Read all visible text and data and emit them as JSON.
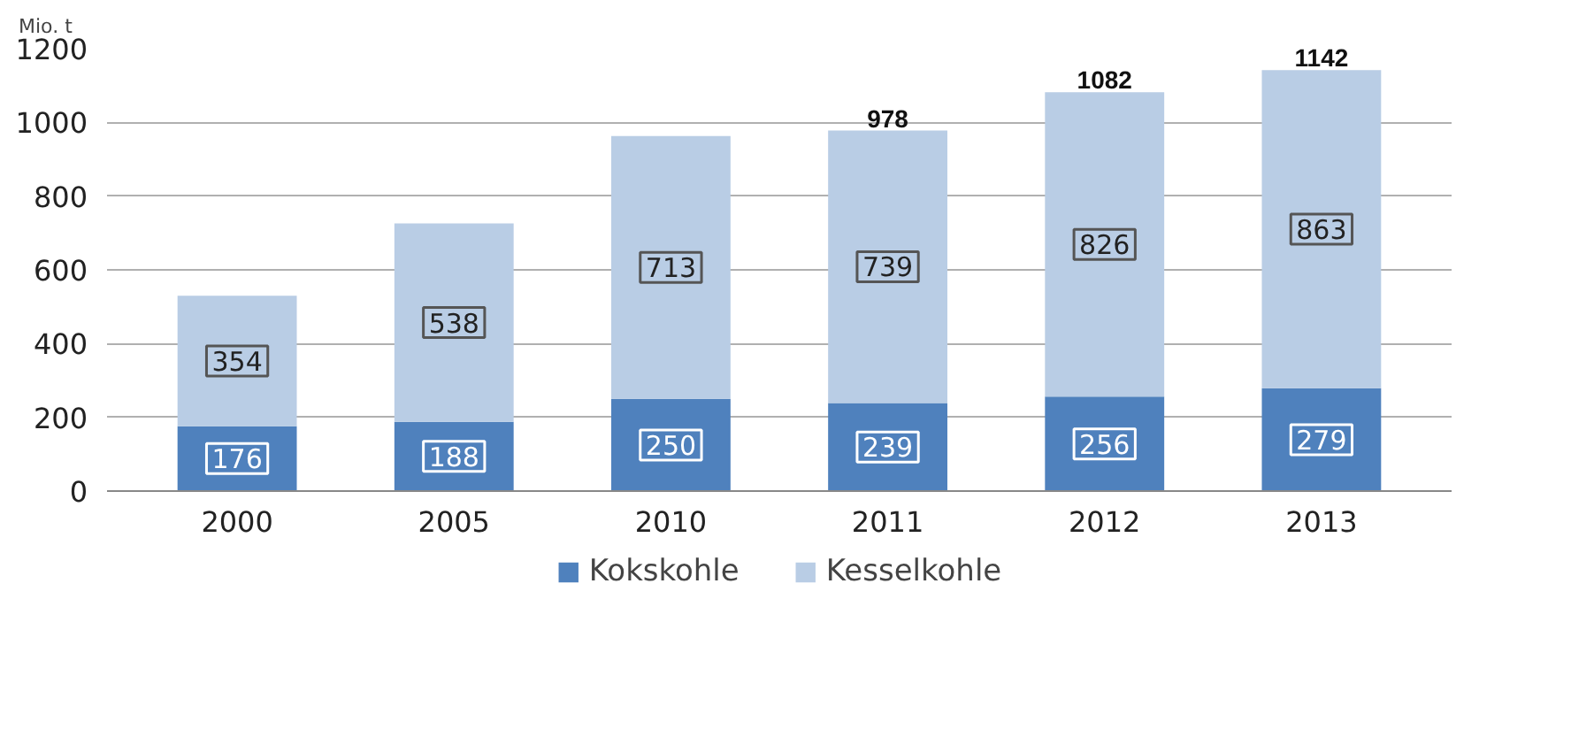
{
  "chart_data": {
    "type": "bar",
    "stacked": true,
    "ylabel": "Mio. t",
    "categories": [
      "2000",
      "2005",
      "2010",
      "2011",
      "2012",
      "2013"
    ],
    "series": [
      {
        "name": "Kokskohle",
        "color": "#4f81bd",
        "values": [
          176,
          188,
          250,
          239,
          256,
          279
        ]
      },
      {
        "name": "Kesselkohle",
        "color": "#b9cde5",
        "values": [
          354,
          538,
          713,
          739,
          826,
          863
        ]
      }
    ],
    "totals": [
      null,
      null,
      null,
      "978",
      "1082",
      "1142"
    ],
    "ylim": [
      0,
      1200
    ],
    "yticks": [
      0,
      200,
      400,
      600,
      800,
      1000,
      1200
    ],
    "grid": "y",
    "legend": "bottom",
    "data_labels": true
  }
}
